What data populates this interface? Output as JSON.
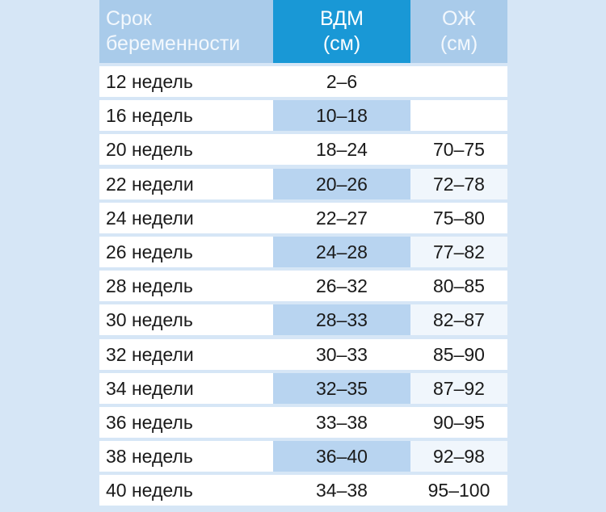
{
  "table": {
    "headers": {
      "term": [
        "Срок",
        "беременности"
      ],
      "vdm": [
        "ВДМ",
        "(см)"
      ],
      "ozh": [
        "ОЖ",
        "(см)"
      ]
    },
    "rows": [
      {
        "term": "12 недель",
        "vdm": "2–6",
        "ozh": ""
      },
      {
        "term": "16 недель",
        "vdm": "10–18",
        "ozh": ""
      },
      {
        "term": "20 недель",
        "vdm": "18–24",
        "ozh": "70–75"
      },
      {
        "term": "22 недели",
        "vdm": "20–26",
        "ozh": "72–78"
      },
      {
        "term": "24 недели",
        "vdm": "22–27",
        "ozh": "75–80"
      },
      {
        "term": "26 недель",
        "vdm": "24–28",
        "ozh": "77–82"
      },
      {
        "term": "28 недель",
        "vdm": "26–32",
        "ozh": "80–85"
      },
      {
        "term": "30 недель",
        "vdm": "28–33",
        "ozh": "82–87"
      },
      {
        "term": "32 недели",
        "vdm": "30–33",
        "ozh": "85–90"
      },
      {
        "term": "34 недели",
        "vdm": "32–35",
        "ozh": "87–92"
      },
      {
        "term": "36 недель",
        "vdm": "33–38",
        "ozh": "90–95"
      },
      {
        "term": "38 недель",
        "vdm": "36–40",
        "ozh": "92–98"
      },
      {
        "term": "40 недель",
        "vdm": "34–38",
        "ozh": "95–100"
      }
    ]
  },
  "colors": {
    "background": "#d6e6f6",
    "header_light": "#a9cbea",
    "header_accent": "#1998d6",
    "row_accent": "#b8d4f0"
  }
}
